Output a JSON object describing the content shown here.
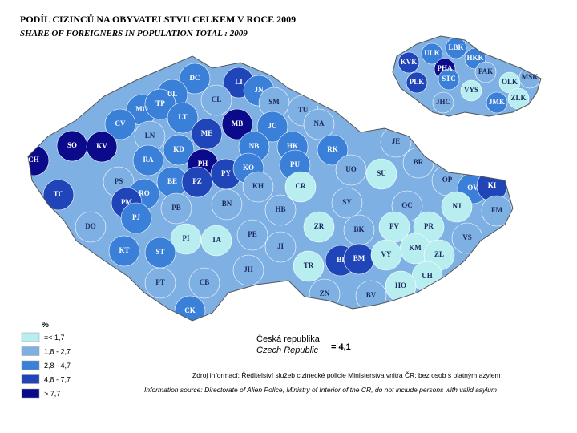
{
  "header": {
    "title": "PODÍL CIZINCŮ NA OBYVATELSTVU CELKEM V ROCE 2009",
    "subtitle": "SHARE OF FOREIGNERS IN POPULATION TOTAL : 2009"
  },
  "map": {
    "districts": [
      {
        "label": "DC",
        "color": "#3a7fd8"
      },
      {
        "label": "LI",
        "color": "#1f45b8"
      },
      {
        "label": "JN",
        "color": "#3a7fd8"
      },
      {
        "label": "UL",
        "color": "#3a7fd8"
      },
      {
        "label": "CL",
        "color": "#7fb0e4"
      },
      {
        "label": "MO",
        "color": "#3a7fd8"
      },
      {
        "label": "TP",
        "color": "#3a7fd8"
      },
      {
        "label": "SM",
        "color": "#7fb0e4"
      },
      {
        "label": "TU",
        "color": "#7fb0e4"
      },
      {
        "label": "LT",
        "color": "#3a7fd8"
      },
      {
        "label": "CV",
        "color": "#3a7fd8"
      },
      {
        "label": "ME",
        "color": "#1f45b8"
      },
      {
        "label": "MB",
        "color": "#0a0a8a"
      },
      {
        "label": "JC",
        "color": "#3a7fd8"
      },
      {
        "label": "NA",
        "color": "#7fb0e4"
      },
      {
        "label": "LN",
        "color": "#7fb0e4"
      },
      {
        "label": "SO",
        "color": "#0a0a8a"
      },
      {
        "label": "KV",
        "color": "#0a0a8a"
      },
      {
        "label": "KD",
        "color": "#3a7fd8"
      },
      {
        "label": "NB",
        "color": "#3a7fd8"
      },
      {
        "label": "HK",
        "color": "#3a7fd8"
      },
      {
        "label": "RK",
        "color": "#3a7fd8"
      },
      {
        "label": "JE",
        "color": "#7fb0e4"
      },
      {
        "label": "CH",
        "color": "#0a0a8a"
      },
      {
        "label": "RA",
        "color": "#3a7fd8"
      },
      {
        "label": "PH",
        "color": "#0a0a8a"
      },
      {
        "label": "PY",
        "color": "#1f45b8"
      },
      {
        "label": "KO",
        "color": "#3a7fd8"
      },
      {
        "label": "PU",
        "color": "#3a7fd8"
      },
      {
        "label": "BR",
        "color": "#7fb0e4"
      },
      {
        "label": "UO",
        "color": "#7fb0e4"
      },
      {
        "label": "SU",
        "color": "#b9eef0"
      },
      {
        "label": "TC",
        "color": "#1f45b8"
      },
      {
        "label": "PS",
        "color": "#7fb0e4"
      },
      {
        "label": "BE",
        "color": "#3a7fd8"
      },
      {
        "label": "PZ",
        "color": "#1f45b8"
      },
      {
        "label": "KH",
        "color": "#7fb0e4"
      },
      {
        "label": "CR",
        "color": "#b9eef0"
      },
      {
        "label": "OP",
        "color": "#7fb0e4"
      },
      {
        "label": "OV",
        "color": "#3a7fd8"
      },
      {
        "label": "KI",
        "color": "#1f45b8"
      },
      {
        "label": "RO",
        "color": "#3a7fd8"
      },
      {
        "label": "PM",
        "color": "#1f45b8"
      },
      {
        "label": "SY",
        "color": "#7fb0e4"
      },
      {
        "label": "OC",
        "color": "#7fb0e4"
      },
      {
        "label": "NJ",
        "color": "#b9eef0"
      },
      {
        "label": "FM",
        "color": "#7fb0e4"
      },
      {
        "label": "PJ",
        "color": "#3a7fd8"
      },
      {
        "label": "PB",
        "color": "#7fb0e4"
      },
      {
        "label": "BN",
        "color": "#7fb0e4"
      },
      {
        "label": "HB",
        "color": "#7fb0e4"
      },
      {
        "label": "DO",
        "color": "#7fb0e4"
      },
      {
        "label": "ZR",
        "color": "#b9eef0"
      },
      {
        "label": "BK",
        "color": "#7fb0e4"
      },
      {
        "label": "PV",
        "color": "#b9eef0"
      },
      {
        "label": "PR",
        "color": "#b9eef0"
      },
      {
        "label": "VS",
        "color": "#7fb0e4"
      },
      {
        "label": "PE",
        "color": "#7fb0e4"
      },
      {
        "label": "PI",
        "color": "#b9eef0"
      },
      {
        "label": "TA",
        "color": "#b9eef0"
      },
      {
        "label": "JI",
        "color": "#7fb0e4"
      },
      {
        "label": "KM",
        "color": "#b9eef0"
      },
      {
        "label": "ZL",
        "color": "#b9eef0"
      },
      {
        "label": "KT",
        "color": "#3a7fd8"
      },
      {
        "label": "ST",
        "color": "#3a7fd8"
      },
      {
        "label": "BI",
        "color": "#1f45b8"
      },
      {
        "label": "BM",
        "color": "#1f45b8"
      },
      {
        "label": "VY",
        "color": "#b9eef0"
      },
      {
        "label": "TR",
        "color": "#b9eef0"
      },
      {
        "label": "JH",
        "color": "#7fb0e4"
      },
      {
        "label": "UH",
        "color": "#b9eef0"
      },
      {
        "label": "PT",
        "color": "#7fb0e4"
      },
      {
        "label": "CB",
        "color": "#7fb0e4"
      },
      {
        "label": "HO",
        "color": "#b9eef0"
      },
      {
        "label": "ZN",
        "color": "#7fb0e4"
      },
      {
        "label": "BV",
        "color": "#7fb0e4"
      },
      {
        "label": "CK",
        "color": "#3a7fd8"
      }
    ],
    "regions": [
      {
        "label": "LBK",
        "color": "#3a7fd8"
      },
      {
        "label": "ULK",
        "color": "#3a7fd8"
      },
      {
        "label": "HKK",
        "color": "#3a7fd8"
      },
      {
        "label": "KVK",
        "color": "#1f45b8"
      },
      {
        "label": "PAK",
        "color": "#7fb0e4"
      },
      {
        "label": "PHA",
        "color": "#0a0a8a"
      },
      {
        "label": "STC",
        "color": "#3a7fd8"
      },
      {
        "label": "OLK",
        "color": "#b9eef0"
      },
      {
        "label": "MSK",
        "color": "#7fb0e4"
      },
      {
        "label": "PLK",
        "color": "#1f45b8"
      },
      {
        "label": "VYS",
        "color": "#b9eef0"
      },
      {
        "label": "ZLK",
        "color": "#b9eef0"
      },
      {
        "label": "JMK",
        "color": "#3a7fd8"
      },
      {
        "label": "JHC",
        "color": "#7fb0e4"
      }
    ]
  },
  "legend": {
    "title": "%",
    "items": [
      {
        "label": "=< 1,7",
        "color": "#b9eef0"
      },
      {
        "label": "1,8 - 2,7",
        "color": "#7fb0e4"
      },
      {
        "label": "2,8 - 4,7",
        "color": "#3a7fd8"
      },
      {
        "label": "4,8 - 7,7",
        "color": "#1f45b8"
      },
      {
        "label": "> 7,7",
        "color": "#0a0a8a"
      }
    ]
  },
  "country": {
    "name_cz": "Česká republika",
    "name_en": "Czech Republic",
    "value": "= 4,1"
  },
  "source": {
    "cz": "Zdroj informací: Ředitelství služeb cizinecké policie Ministerstva vnitra ČR; bez osob s platným azylem",
    "en": "Information source: Directorate of Alien Police, Ministry of Interior of the CR, do not include persons with valid asylum"
  }
}
